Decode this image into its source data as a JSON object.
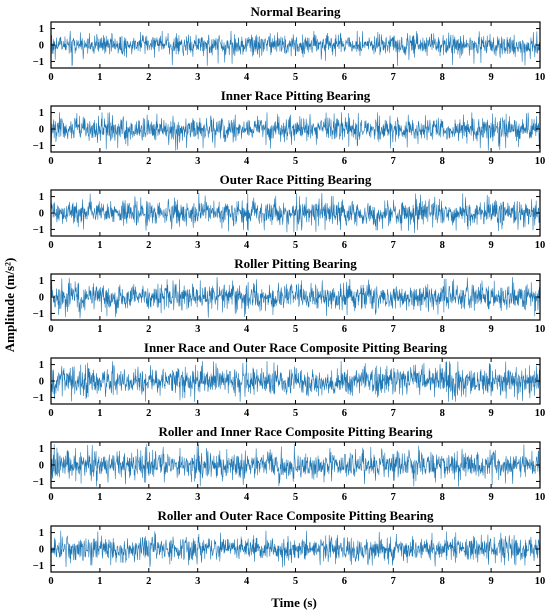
{
  "figure": {
    "xlabel": "Time (s)",
    "ylabel": "Amplitude (m/s²)"
  },
  "style": {
    "signal_color": "#1f77b4",
    "axis_color": "#000000",
    "background": "#ffffff"
  },
  "chart_data": [
    {
      "type": "line",
      "title": "Normal Bearing",
      "xlim": [
        0,
        10
      ],
      "ylim": [
        -1.4,
        1.4
      ],
      "xticks": [
        0,
        1,
        2,
        3,
        4,
        5,
        6,
        7,
        8,
        9,
        10
      ],
      "yticks": [
        -1,
        0,
        1
      ],
      "signal": {
        "x_range": [
          0,
          10
        ],
        "amplitude_rms": 0.33,
        "peak_min": -1.3,
        "peak_max": 0.85
      }
    },
    {
      "type": "line",
      "title": "Inner Race Pitting Bearing",
      "xlim": [
        0,
        10
      ],
      "ylim": [
        -1.4,
        1.4
      ],
      "xticks": [
        0,
        1,
        2,
        3,
        4,
        5,
        6,
        7,
        8,
        9,
        10
      ],
      "yticks": [
        -1,
        0,
        1
      ],
      "signal": {
        "x_range": [
          0,
          10
        ],
        "amplitude_rms": 0.38,
        "peak_min": -1.3,
        "peak_max": 1.0
      }
    },
    {
      "type": "line",
      "title": "Outer Race Pitting Bearing",
      "xlim": [
        0,
        10
      ],
      "ylim": [
        -1.4,
        1.4
      ],
      "xticks": [
        0,
        1,
        2,
        3,
        4,
        5,
        6,
        7,
        8,
        9,
        10
      ],
      "yticks": [
        -1,
        0,
        1
      ],
      "signal": {
        "x_range": [
          0,
          10
        ],
        "amplitude_rms": 0.37,
        "peak_min": -1.2,
        "peak_max": 1.2
      }
    },
    {
      "type": "line",
      "title": "Roller Pitting Bearing",
      "xlim": [
        0,
        10
      ],
      "ylim": [
        -1.4,
        1.4
      ],
      "xticks": [
        0,
        1,
        2,
        3,
        4,
        5,
        6,
        7,
        8,
        9,
        10
      ],
      "yticks": [
        -1,
        0,
        1
      ],
      "signal": {
        "x_range": [
          0,
          10
        ],
        "amplitude_rms": 0.4,
        "peak_min": -1.3,
        "peak_max": 1.2
      }
    },
    {
      "type": "line",
      "title": "Inner Race and Outer Race Composite Pitting Bearing",
      "xlim": [
        0,
        10
      ],
      "ylim": [
        -1.4,
        1.4
      ],
      "xticks": [
        0,
        1,
        2,
        3,
        4,
        5,
        6,
        7,
        8,
        9,
        10
      ],
      "yticks": [
        -1,
        0,
        1
      ],
      "signal": {
        "x_range": [
          0,
          10
        ],
        "amplitude_rms": 0.45,
        "peak_min": -1.25,
        "peak_max": 1.2
      }
    },
    {
      "type": "line",
      "title": "Roller and Inner Race Composite Pitting Bearing",
      "xlim": [
        0,
        10
      ],
      "ylim": [
        -1.4,
        1.4
      ],
      "xticks": [
        0,
        1,
        2,
        3,
        4,
        5,
        6,
        7,
        8,
        9,
        10
      ],
      "yticks": [
        -1,
        0,
        1
      ],
      "signal": {
        "x_range": [
          0,
          10
        ],
        "amplitude_rms": 0.42,
        "peak_min": -1.3,
        "peak_max": 1.25
      }
    },
    {
      "type": "line",
      "title": "Roller and Outer Race Composite Pitting Bearing",
      "xlim": [
        0,
        10
      ],
      "ylim": [
        -1.4,
        1.4
      ],
      "xticks": [
        0,
        1,
        2,
        3,
        4,
        5,
        6,
        7,
        8,
        9,
        10
      ],
      "yticks": [
        -1,
        0,
        1
      ],
      "signal": {
        "x_range": [
          0,
          10
        ],
        "amplitude_rms": 0.38,
        "peak_min": -1.1,
        "peak_max": 1.1
      }
    }
  ]
}
